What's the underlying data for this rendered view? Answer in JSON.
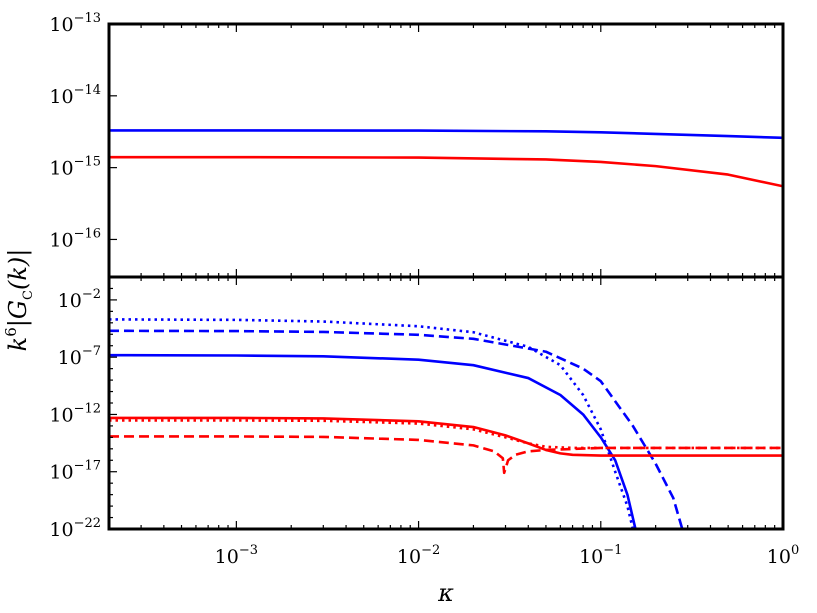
{
  "chart_data": [
    {
      "type": "line",
      "panel": "top",
      "xscale": "log",
      "yscale": "log",
      "xlim": [
        0.0002,
        1
      ],
      "ylim": [
        3e-17,
        1e-13
      ],
      "yticks": [
        {
          "value": 1e-13,
          "base": "10",
          "exp": "−13"
        },
        {
          "value": 1e-14,
          "base": "10",
          "exp": "−14"
        },
        {
          "value": 1e-15,
          "base": "10",
          "exp": "−15"
        },
        {
          "value": 1e-16,
          "base": "10",
          "exp": "−16"
        }
      ],
      "series": [
        {
          "color": "#0000ff",
          "style": "solid",
          "x": [
            0.0002,
            0.001,
            0.01,
            0.05,
            0.1,
            0.2,
            0.5,
            1.0
          ],
          "y": [
            3.3e-15,
            3.3e-15,
            3.28e-15,
            3.2e-15,
            3.1e-15,
            2.95e-15,
            2.75e-15,
            2.6e-15
          ]
        },
        {
          "color": "#ff0000",
          "style": "solid",
          "x": [
            0.0002,
            0.001,
            0.01,
            0.05,
            0.1,
            0.2,
            0.5,
            1.0
          ],
          "y": [
            1.4e-15,
            1.4e-15,
            1.38e-15,
            1.3e-15,
            1.2e-15,
            1.05e-15,
            8e-16,
            5.5e-16
          ]
        }
      ]
    },
    {
      "type": "line",
      "panel": "bottom",
      "xscale": "log",
      "yscale": "log",
      "xlim": [
        0.0002,
        1
      ],
      "ylim": [
        1e-22,
        1.0
      ],
      "ylabel": "k6|GC(k)|",
      "xlabel": "κ",
      "xticks": [
        {
          "value": 0.001,
          "base": "10",
          "exp": "−3"
        },
        {
          "value": 0.01,
          "base": "10",
          "exp": "−2"
        },
        {
          "value": 0.1,
          "base": "10",
          "exp": "−1"
        },
        {
          "value": 1,
          "base": "10",
          "exp": "0"
        }
      ],
      "yticks": [
        {
          "value": 0.01,
          "base": "10",
          "exp": "−2"
        },
        {
          "value": 1e-07,
          "base": "10",
          "exp": "−7"
        },
        {
          "value": 1e-12,
          "base": "10",
          "exp": "−12"
        },
        {
          "value": 1e-17,
          "base": "10",
          "exp": "−17"
        },
        {
          "value": 1e-22,
          "base": "10",
          "exp": "−22"
        }
      ],
      "series": [
        {
          "color": "#0000ff",
          "style": "dotted",
          "x": [
            0.0002,
            0.001,
            0.003,
            0.01,
            0.02,
            0.04,
            0.06,
            0.08,
            0.1,
            0.12,
            0.14,
            0.15
          ],
          "y": [
            0.0002,
            0.00018,
            0.00013,
            5e-05,
            1.5e-05,
            8e-07,
            2e-08,
            5e-11,
            5e-14,
            1e-17,
            1e-20,
            1e-22
          ]
        },
        {
          "color": "#0000ff",
          "style": "dashed",
          "x": [
            0.0002,
            0.001,
            0.003,
            0.01,
            0.02,
            0.05,
            0.08,
            0.1,
            0.15,
            0.2,
            0.25,
            0.28
          ],
          "y": [
            2e-05,
            1.9e-05,
            1.6e-05,
            9e-06,
            4e-06,
            3e-07,
            1e-08,
            8e-10,
            1e-13,
            5e-17,
            5e-20,
            1e-22
          ]
        },
        {
          "color": "#0000ff",
          "style": "solid",
          "x": [
            0.0002,
            0.001,
            0.003,
            0.01,
            0.02,
            0.04,
            0.06,
            0.08,
            0.1,
            0.12,
            0.14,
            0.155
          ],
          "y": [
            1.5e-07,
            1.4e-07,
            1.2e-07,
            6e-08,
            2e-08,
            1.5e-09,
            5e-11,
            1e-12,
            1e-14,
            1e-16,
            1e-19,
            1e-22
          ]
        },
        {
          "color": "#ff0000",
          "style": "solid",
          "x": [
            0.0002,
            0.001,
            0.003,
            0.01,
            0.02,
            0.03,
            0.04,
            0.05,
            0.06,
            0.07,
            0.1,
            1.0
          ],
          "y": [
            5e-13,
            5e-13,
            4.5e-13,
            2.5e-13,
            8e-14,
            1.5e-14,
            3e-15,
            8e-16,
            4e-16,
            3e-16,
            2.6e-16,
            2.6e-16
          ]
        },
        {
          "color": "#ff0000",
          "style": "dotted",
          "x": [
            0.0002,
            0.001,
            0.003,
            0.01,
            0.02,
            0.03,
            0.04,
            0.05,
            0.07,
            0.1,
            1.0
          ],
          "y": [
            3e-13,
            3e-13,
            2.8e-13,
            1.6e-13,
            5e-14,
            1e-14,
            3e-15,
            1.5e-15,
            1.2e-15,
            1.2e-15,
            1.2e-15
          ]
        },
        {
          "color": "#ff0000",
          "style": "dashed",
          "x": [
            0.0002,
            0.001,
            0.003,
            0.01,
            0.02,
            0.026,
            0.029,
            0.0295,
            0.031,
            0.034,
            0.04,
            0.05,
            0.1,
            1.0
          ],
          "y": [
            1.2e-14,
            1.2e-14,
            1.1e-14,
            6e-15,
            2e-15,
            6e-16,
            1.5e-16,
            8e-18,
            1e-16,
            3e-16,
            6e-16,
            8e-16,
            1.2e-15,
            1.2e-15
          ]
        }
      ]
    }
  ]
}
